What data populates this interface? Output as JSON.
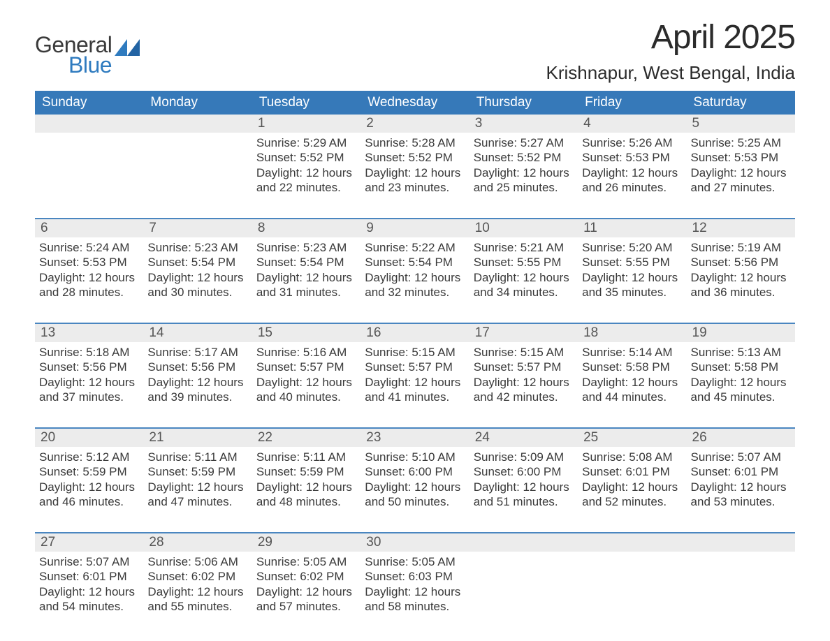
{
  "logo": {
    "general": "General",
    "blue": "Blue"
  },
  "title": "April 2025",
  "location": "Krishnapur, West Bengal, India",
  "columns": [
    "Sunday",
    "Monday",
    "Tuesday",
    "Wednesday",
    "Thursday",
    "Friday",
    "Saturday"
  ],
  "colors": {
    "header_bg": "#3679b9",
    "header_text": "#ffffff",
    "week_border": "#4a86c0",
    "daybar_bg": "#ececec",
    "text": "#3a3a3a",
    "logo_blue": "#2f7bbf"
  },
  "weeks": [
    [
      {
        "num": "",
        "lines": []
      },
      {
        "num": "",
        "lines": []
      },
      {
        "num": "1",
        "lines": [
          "Sunrise: 5:29 AM",
          "Sunset: 5:52 PM",
          "Daylight: 12 hours and 22 minutes."
        ]
      },
      {
        "num": "2",
        "lines": [
          "Sunrise: 5:28 AM",
          "Sunset: 5:52 PM",
          "Daylight: 12 hours and 23 minutes."
        ]
      },
      {
        "num": "3",
        "lines": [
          "Sunrise: 5:27 AM",
          "Sunset: 5:52 PM",
          "Daylight: 12 hours and 25 minutes."
        ]
      },
      {
        "num": "4",
        "lines": [
          "Sunrise: 5:26 AM",
          "Sunset: 5:53 PM",
          "Daylight: 12 hours and 26 minutes."
        ]
      },
      {
        "num": "5",
        "lines": [
          "Sunrise: 5:25 AM",
          "Sunset: 5:53 PM",
          "Daylight: 12 hours and 27 minutes."
        ]
      }
    ],
    [
      {
        "num": "6",
        "lines": [
          "Sunrise: 5:24 AM",
          "Sunset: 5:53 PM",
          "Daylight: 12 hours and 28 minutes."
        ]
      },
      {
        "num": "7",
        "lines": [
          "Sunrise: 5:23 AM",
          "Sunset: 5:54 PM",
          "Daylight: 12 hours and 30 minutes."
        ]
      },
      {
        "num": "8",
        "lines": [
          "Sunrise: 5:23 AM",
          "Sunset: 5:54 PM",
          "Daylight: 12 hours and 31 minutes."
        ]
      },
      {
        "num": "9",
        "lines": [
          "Sunrise: 5:22 AM",
          "Sunset: 5:54 PM",
          "Daylight: 12 hours and 32 minutes."
        ]
      },
      {
        "num": "10",
        "lines": [
          "Sunrise: 5:21 AM",
          "Sunset: 5:55 PM",
          "Daylight: 12 hours and 34 minutes."
        ]
      },
      {
        "num": "11",
        "lines": [
          "Sunrise: 5:20 AM",
          "Sunset: 5:55 PM",
          "Daylight: 12 hours and 35 minutes."
        ]
      },
      {
        "num": "12",
        "lines": [
          "Sunrise: 5:19 AM",
          "Sunset: 5:56 PM",
          "Daylight: 12 hours and 36 minutes."
        ]
      }
    ],
    [
      {
        "num": "13",
        "lines": [
          "Sunrise: 5:18 AM",
          "Sunset: 5:56 PM",
          "Daylight: 12 hours and 37 minutes."
        ]
      },
      {
        "num": "14",
        "lines": [
          "Sunrise: 5:17 AM",
          "Sunset: 5:56 PM",
          "Daylight: 12 hours and 39 minutes."
        ]
      },
      {
        "num": "15",
        "lines": [
          "Sunrise: 5:16 AM",
          "Sunset: 5:57 PM",
          "Daylight: 12 hours and 40 minutes."
        ]
      },
      {
        "num": "16",
        "lines": [
          "Sunrise: 5:15 AM",
          "Sunset: 5:57 PM",
          "Daylight: 12 hours and 41 minutes."
        ]
      },
      {
        "num": "17",
        "lines": [
          "Sunrise: 5:15 AM",
          "Sunset: 5:57 PM",
          "Daylight: 12 hours and 42 minutes."
        ]
      },
      {
        "num": "18",
        "lines": [
          "Sunrise: 5:14 AM",
          "Sunset: 5:58 PM",
          "Daylight: 12 hours and 44 minutes."
        ]
      },
      {
        "num": "19",
        "lines": [
          "Sunrise: 5:13 AM",
          "Sunset: 5:58 PM",
          "Daylight: 12 hours and 45 minutes."
        ]
      }
    ],
    [
      {
        "num": "20",
        "lines": [
          "Sunrise: 5:12 AM",
          "Sunset: 5:59 PM",
          "Daylight: 12 hours and 46 minutes."
        ]
      },
      {
        "num": "21",
        "lines": [
          "Sunrise: 5:11 AM",
          "Sunset: 5:59 PM",
          "Daylight: 12 hours and 47 minutes."
        ]
      },
      {
        "num": "22",
        "lines": [
          "Sunrise: 5:11 AM",
          "Sunset: 5:59 PM",
          "Daylight: 12 hours and 48 minutes."
        ]
      },
      {
        "num": "23",
        "lines": [
          "Sunrise: 5:10 AM",
          "Sunset: 6:00 PM",
          "Daylight: 12 hours and 50 minutes."
        ]
      },
      {
        "num": "24",
        "lines": [
          "Sunrise: 5:09 AM",
          "Sunset: 6:00 PM",
          "Daylight: 12 hours and 51 minutes."
        ]
      },
      {
        "num": "25",
        "lines": [
          "Sunrise: 5:08 AM",
          "Sunset: 6:01 PM",
          "Daylight: 12 hours and 52 minutes."
        ]
      },
      {
        "num": "26",
        "lines": [
          "Sunrise: 5:07 AM",
          "Sunset: 6:01 PM",
          "Daylight: 12 hours and 53 minutes."
        ]
      }
    ],
    [
      {
        "num": "27",
        "lines": [
          "Sunrise: 5:07 AM",
          "Sunset: 6:01 PM",
          "Daylight: 12 hours and 54 minutes."
        ]
      },
      {
        "num": "28",
        "lines": [
          "Sunrise: 5:06 AM",
          "Sunset: 6:02 PM",
          "Daylight: 12 hours and 55 minutes."
        ]
      },
      {
        "num": "29",
        "lines": [
          "Sunrise: 5:05 AM",
          "Sunset: 6:02 PM",
          "Daylight: 12 hours and 57 minutes."
        ]
      },
      {
        "num": "30",
        "lines": [
          "Sunrise: 5:05 AM",
          "Sunset: 6:03 PM",
          "Daylight: 12 hours and 58 minutes."
        ]
      },
      {
        "num": "",
        "lines": []
      },
      {
        "num": "",
        "lines": []
      },
      {
        "num": "",
        "lines": []
      }
    ]
  ]
}
